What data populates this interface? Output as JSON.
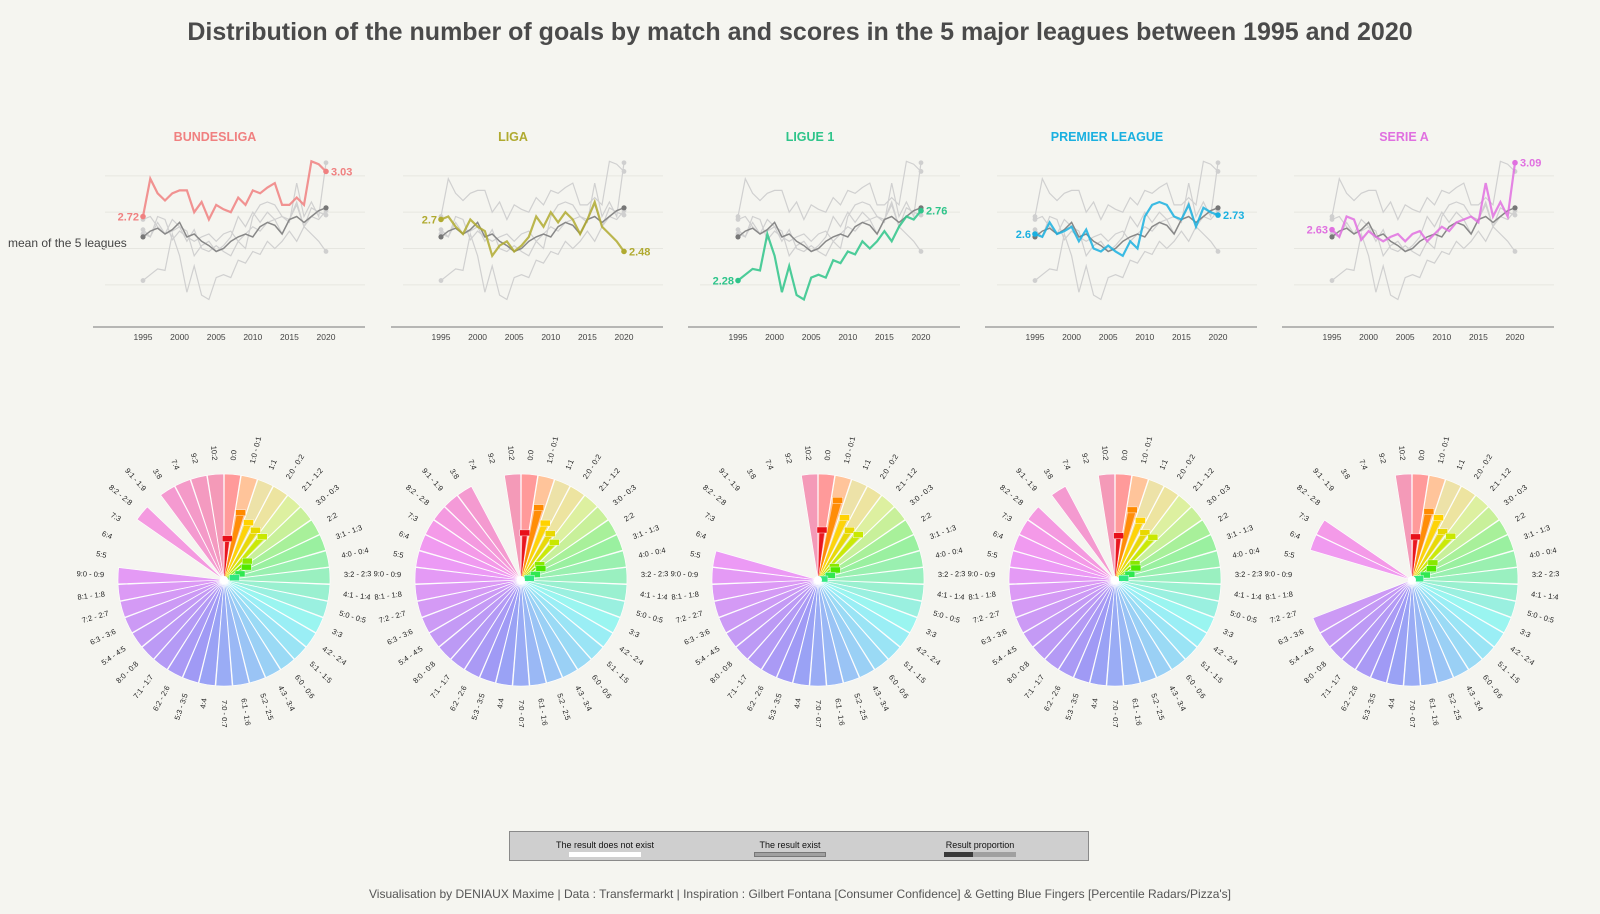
{
  "title": "Distribution of the number of goals by match and scores in the 5 major leagues between 1995 and 2020",
  "mean_label": "mean of the 5 leagues",
  "footer": "Visualisation by DENIAUX Maxime   |   Data : Transfermarkt   |   Inspiration : Gilbert Fontana [Consumer Confidence] & Getting Blue Fingers [Percentile Radars/Pizza's]",
  "legend": [
    {
      "label": "The result does not exist",
      "color": "#ffffff"
    },
    {
      "label": "The result exist",
      "color": "#a0a0a0"
    },
    {
      "label": "Result proportion",
      "color": "#3a3a3a"
    }
  ],
  "chart_data": {
    "type": "line",
    "x": [
      1995,
      1996,
      1997,
      1998,
      1999,
      2000,
      2001,
      2002,
      2003,
      2004,
      2005,
      2006,
      2007,
      2008,
      2009,
      2010,
      2011,
      2012,
      2013,
      2014,
      2015,
      2016,
      2017,
      2018,
      2019,
      2020
    ],
    "x_ticks": [
      "1995",
      "2000",
      "2005",
      "2010",
      "2015",
      "2020"
    ],
    "mean_series": [
      2.58,
      2.62,
      2.64,
      2.6,
      2.63,
      2.68,
      2.58,
      2.6,
      2.55,
      2.52,
      2.48,
      2.5,
      2.55,
      2.58,
      2.6,
      2.58,
      2.65,
      2.68,
      2.66,
      2.6,
      2.7,
      2.72,
      2.68,
      2.72,
      2.76,
      2.78
    ],
    "leagues": [
      {
        "name": "BUNDESLIGA",
        "color": "#f08080",
        "start_label": "2.72",
        "end_label": "3.03",
        "values": [
          2.72,
          2.98,
          2.88,
          2.83,
          2.88,
          2.9,
          2.9,
          2.75,
          2.82,
          2.7,
          2.8,
          2.77,
          2.75,
          2.85,
          2.8,
          2.9,
          2.88,
          2.92,
          2.95,
          2.8,
          2.8,
          2.85,
          2.8,
          3.1,
          3.08,
          3.03
        ]
      },
      {
        "name": "LIGA",
        "color": "#b0aa30",
        "start_label": "2.7",
        "end_label": "2.48",
        "values": [
          2.7,
          2.72,
          2.65,
          2.6,
          2.7,
          2.65,
          2.62,
          2.45,
          2.52,
          2.55,
          2.48,
          2.52,
          2.58,
          2.72,
          2.65,
          2.75,
          2.68,
          2.75,
          2.7,
          2.6,
          2.7,
          2.82,
          2.65,
          2.6,
          2.55,
          2.48
        ]
      },
      {
        "name": "LIGUE 1",
        "color": "#2ec48a",
        "start_label": "2.28",
        "end_label": "2.76",
        "values": [
          2.28,
          2.32,
          2.36,
          2.35,
          2.6,
          2.45,
          2.2,
          2.38,
          2.18,
          2.15,
          2.3,
          2.32,
          2.3,
          2.42,
          2.4,
          2.48,
          2.46,
          2.55,
          2.5,
          2.55,
          2.62,
          2.55,
          2.65,
          2.72,
          2.7,
          2.76
        ]
      },
      {
        "name": "PREMIER LEAGUE",
        "color": "#1ab0e0",
        "start_label": "2.6",
        "end_label": "2.73",
        "values": [
          2.6,
          2.58,
          2.68,
          2.6,
          2.62,
          2.65,
          2.55,
          2.63,
          2.5,
          2.48,
          2.52,
          2.48,
          2.45,
          2.55,
          2.5,
          2.72,
          2.8,
          2.82,
          2.8,
          2.72,
          2.7,
          2.8,
          2.65,
          2.78,
          2.75,
          2.73
        ]
      },
      {
        "name": "SERIE A",
        "color": "#e070e0",
        "start_label": "2.63",
        "end_label": "3.09",
        "values": [
          2.63,
          2.58,
          2.72,
          2.7,
          2.56,
          2.62,
          2.58,
          2.55,
          2.58,
          2.6,
          2.55,
          2.6,
          2.62,
          2.55,
          2.6,
          2.65,
          2.62,
          2.68,
          2.7,
          2.72,
          2.68,
          2.95,
          2.72,
          2.82,
          2.72,
          3.09
        ]
      }
    ],
    "pizza": {
      "type": "pie",
      "categories": [
        "0:0",
        "1:0 - 0:1",
        "1:1",
        "2:0 - 0:2",
        "2:1 - 1:2",
        "3:0 - 0:3",
        "2:2",
        "3:1 - 1:3",
        "4:0 - 0:4",
        "3:2 - 2:3",
        "4:1 - 1:4",
        "5:0 - 0:5",
        "3:3",
        "4:2 - 2:4",
        "5:1 - 1:5",
        "6:0 - 0:6",
        "4:3 - 3:4",
        "5:2 - 2:5",
        "6:1 - 1:6",
        "7:0 - 0:7",
        "4:4",
        "5:3 - 3:5",
        "6:2 - 2:6",
        "7:1 - 1:7",
        "8:0 - 0:8",
        "5:4 - 4:5",
        "6:3 - 3:6",
        "7:2 - 2:7",
        "8:1 - 1:8",
        "9:0 - 0:9",
        "5:5",
        "6:4",
        "7:3",
        "8:2 - 2:8",
        "9:1 - 1:9",
        "3:8",
        "7:4",
        "9:2",
        "10:2"
      ],
      "colors": [
        "#ff9a9a",
        "#ffc49a",
        "#ede2a8",
        "#ede4a0",
        "#ddf0a0",
        "#c8f09a",
        "#a8f09a",
        "#9af0a0",
        "#9af0b0",
        "#9af0c0",
        "#9af0d0",
        "#9af0e0",
        "#9af5f0",
        "#9aeef5",
        "#9ae4f5",
        "#9adaf5",
        "#9ad0f5",
        "#9ac4f5",
        "#9ab8f5",
        "#9aacf5",
        "#9aa2f5",
        "#a09af5",
        "#aa9af5",
        "#b49af5",
        "#bc9af5",
        "#c49af5",
        "#cc9af5",
        "#d49af5",
        "#dc9af5",
        "#e49af5",
        "#ec9af5",
        "#f09af0",
        "#f49ae8",
        "#f49ae0",
        "#f49ad8",
        "#f49ad0",
        "#f49ac8",
        "#f49ac0",
        "#f49ab8"
      ],
      "proportion_colors": [
        "#e8101a",
        "#ff8a00",
        "#ffd200",
        "#e8d800",
        "#c8e800",
        "#88e800",
        "#50e800",
        "#30e850",
        "#30e880"
      ],
      "leagues": [
        {
          "name": "BUNDESLIGA",
          "exists": [
            1,
            1,
            1,
            1,
            1,
            1,
            1,
            1,
            1,
            1,
            1,
            1,
            1,
            1,
            1,
            1,
            1,
            1,
            1,
            1,
            1,
            1,
            1,
            1,
            1,
            1,
            1,
            1,
            1,
            1,
            0,
            0,
            0,
            1,
            0,
            1,
            1,
            1,
            1
          ],
          "proportions": [
            7.5,
            12.3,
            11.1,
            10.5,
            10.3,
            5.5,
            4.8,
            3.3,
            2.2
          ]
        },
        {
          "name": "LIGA",
          "exists": [
            1,
            1,
            1,
            1,
            1,
            1,
            1,
            1,
            1,
            1,
            1,
            1,
            1,
            1,
            1,
            1,
            1,
            1,
            1,
            1,
            1,
            1,
            1,
            1,
            1,
            1,
            1,
            1,
            1,
            1,
            1,
            1,
            1,
            1,
            1,
            1,
            0,
            0,
            1
          ],
          "proportions": [
            8.5,
            13.2,
            11.0,
            9.8,
            9.0,
            4.5,
            4.3,
            3.0,
            1.8
          ]
        },
        {
          "name": "LIGUE 1",
          "exists": [
            1,
            1,
            1,
            1,
            1,
            1,
            1,
            1,
            1,
            1,
            1,
            1,
            1,
            1,
            1,
            1,
            1,
            1,
            1,
            1,
            1,
            1,
            1,
            1,
            1,
            1,
            1,
            1,
            1,
            1,
            1,
            0,
            0,
            0,
            0,
            0,
            0,
            0,
            1
          ],
          "proportions": [
            9.0,
            14.5,
            12.0,
            10.5,
            10.8,
            4.0,
            3.8,
            2.6,
            1.2
          ]
        },
        {
          "name": "PREMIER LEAGUE",
          "exists": [
            1,
            1,
            1,
            1,
            1,
            1,
            1,
            1,
            1,
            1,
            1,
            1,
            1,
            1,
            1,
            1,
            1,
            1,
            1,
            1,
            1,
            1,
            1,
            1,
            1,
            1,
            1,
            1,
            1,
            1,
            1,
            1,
            1,
            1,
            0,
            1,
            0,
            0,
            1
          ],
          "proportions": [
            8.0,
            12.8,
            11.5,
            10.0,
            10.2,
            4.8,
            4.5,
            3.1,
            1.9
          ]
        },
        {
          "name": "SERIE A",
          "exists": [
            1,
            1,
            1,
            1,
            1,
            1,
            1,
            1,
            1,
            1,
            1,
            1,
            1,
            1,
            1,
            1,
            1,
            1,
            1,
            1,
            1,
            1,
            1,
            1,
            1,
            1,
            1,
            0,
            0,
            0,
            0,
            1,
            1,
            0,
            0,
            0,
            0,
            0,
            1
          ],
          "proportions": [
            7.8,
            12.5,
            12.0,
            10.2,
            10.4,
            5.0,
            4.2,
            2.8,
            1.5
          ]
        }
      ]
    }
  }
}
